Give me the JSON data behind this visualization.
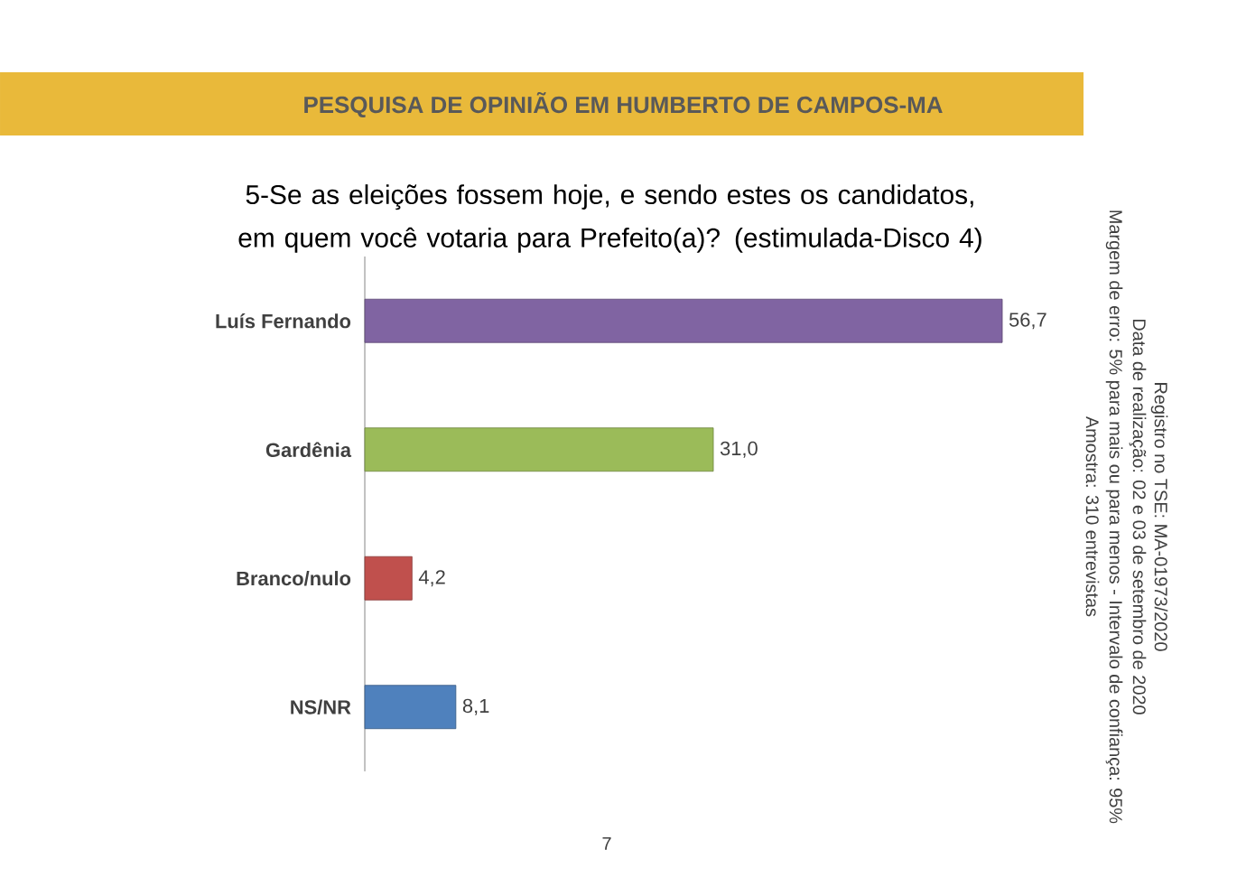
{
  "chart_data": {
    "type": "bar",
    "orientation": "horizontal",
    "title": "PESQUISA DE OPINIÃO EM HUMBERTO DE CAMPOS-MA",
    "subtitle": "5-Se as eleições fossem hoje, e sendo estes os candidatos, em quem você votaria para Prefeito(a)? (estimulada-Disco 4)",
    "categories": [
      "Luís Fernando",
      "Gardênia",
      "Branco/nulo",
      "NS/NR"
    ],
    "values": [
      56.7,
      31.0,
      4.2,
      8.1
    ],
    "colors": [
      "#8064a2",
      "#9bbb59",
      "#c0504d",
      "#4f81bd"
    ],
    "value_labels": [
      "56,7",
      "31,0",
      "4,2",
      "8,1"
    ],
    "annotations": [
      "Registro no TSE: MA-01973/2020",
      "Data de realização: 02 e 03 de setembro de 2020",
      "Margem de erro: 5% para mais ou para menos - Intervalo de confiança: 95%",
      "Amostra: 310 entrevistas",
      "7"
    ]
  }
}
